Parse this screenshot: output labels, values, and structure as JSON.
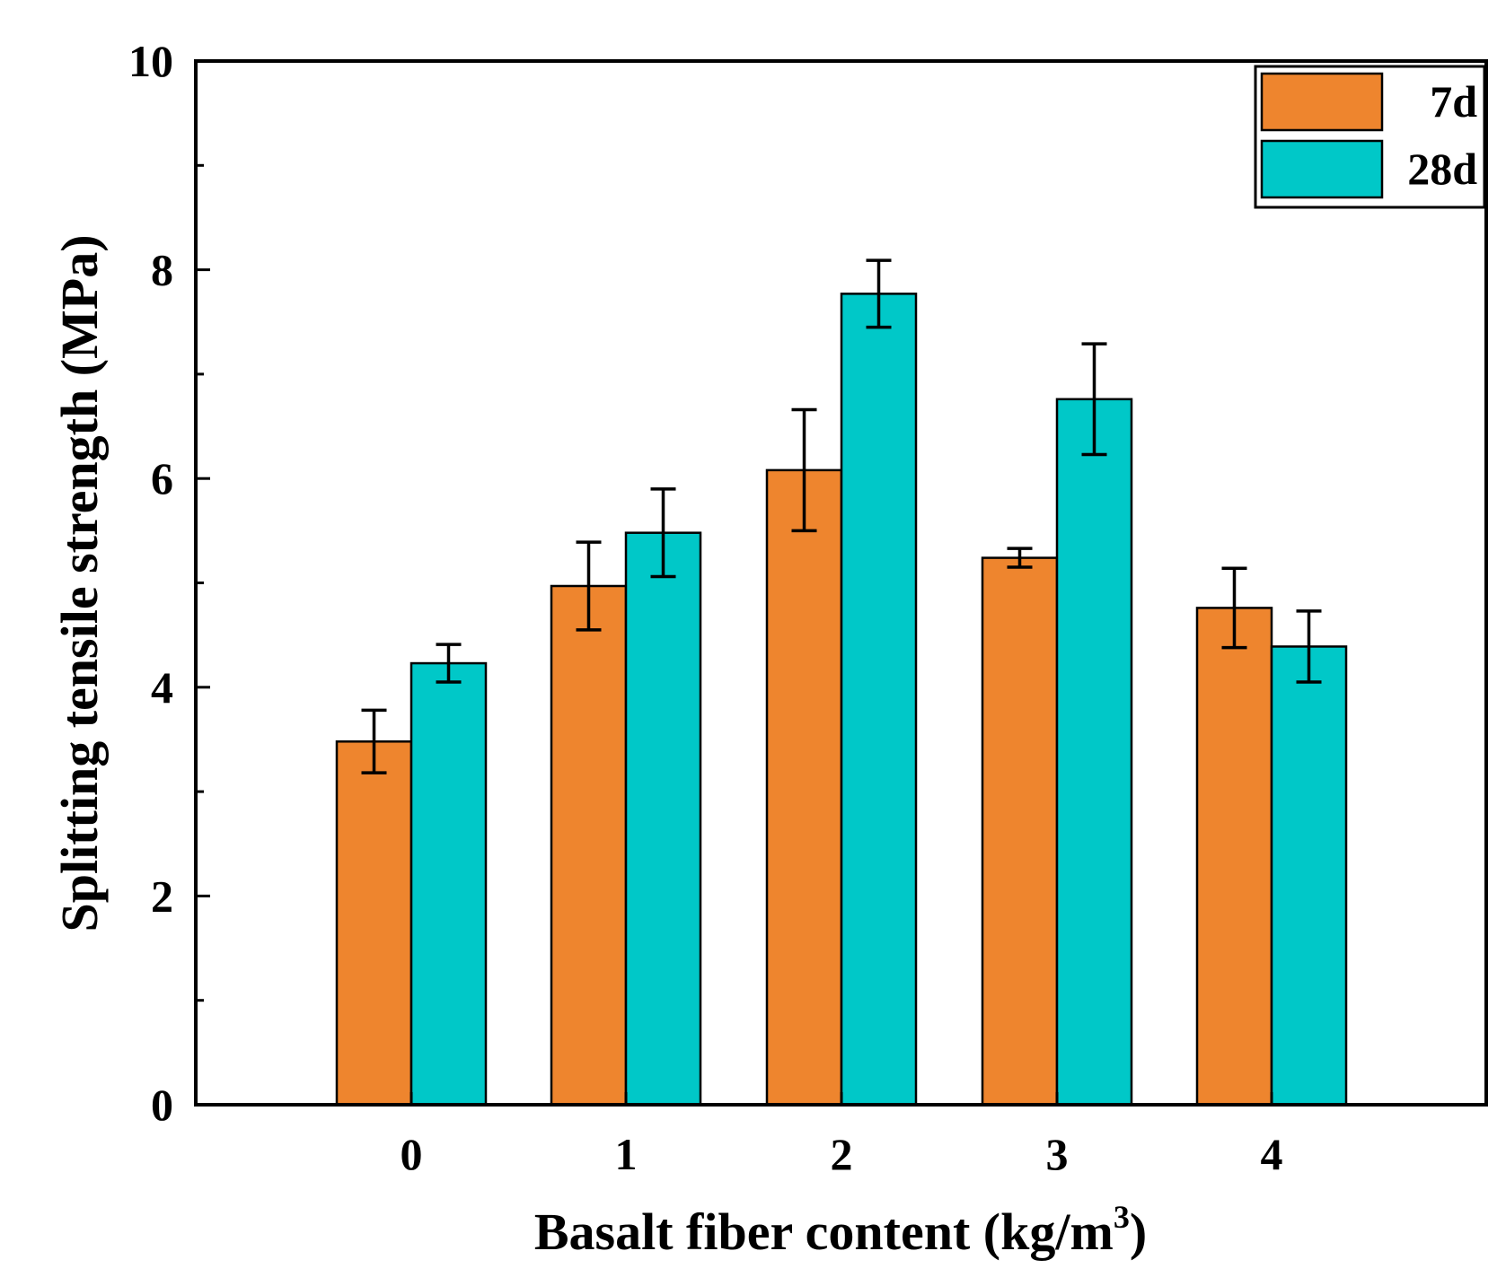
{
  "chart_data": {
    "type": "bar",
    "categories": [
      "0",
      "1",
      "2",
      "3",
      "4"
    ],
    "series": [
      {
        "name": "7d",
        "color": "#ee852e",
        "values": [
          3.48,
          4.97,
          6.08,
          5.24,
          4.76
        ],
        "errors": [
          0.3,
          0.42,
          0.58,
          0.09,
          0.38
        ]
      },
      {
        "name": "28d",
        "color": "#00c8c8",
        "values": [
          4.23,
          5.48,
          7.77,
          6.76,
          4.39
        ],
        "errors": [
          0.18,
          0.42,
          0.32,
          0.53,
          0.34
        ]
      }
    ],
    "xlabel": "Basalt fiber content (kg/m",
    "xlabel_sup": "3",
    "xlabel_end": ")",
    "ylabel": "Splitting tensile strength (MPa)",
    "ylim": [
      0,
      10
    ],
    "yticks": [
      "0",
      "2",
      "4",
      "6",
      "8",
      "10"
    ],
    "legend_position": "top-right",
    "grid": false
  }
}
